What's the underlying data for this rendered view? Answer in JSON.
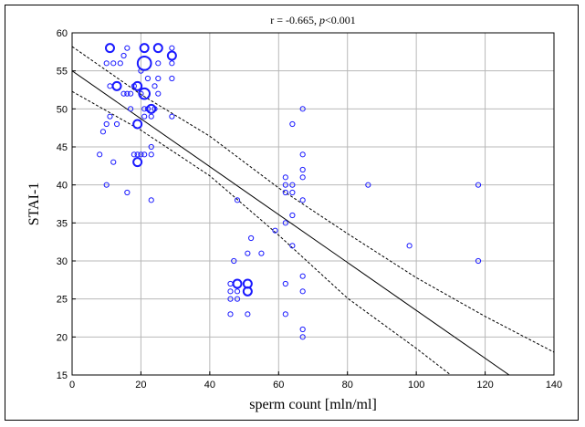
{
  "chart_data": {
    "type": "scatter",
    "title_parts": {
      "prefix": "r = -0.665, ",
      "italic": "p",
      "suffix": "<0.001"
    },
    "xlabel": "sperm count [mln/ml]",
    "ylabel": "STAI-1",
    "xlim": [
      0,
      140
    ],
    "ylim": [
      15,
      60
    ],
    "xticks": [
      0,
      20,
      40,
      60,
      80,
      100,
      120,
      140
    ],
    "yticks": [
      15,
      20,
      25,
      30,
      35,
      40,
      45,
      50,
      55,
      60
    ],
    "grid": true,
    "marker_color": "#1a1aff",
    "line_color": "#000000",
    "regression": {
      "intercept": 55.0,
      "slope": -0.315,
      "ci_upper": [
        [
          0,
          58.2
        ],
        [
          20,
          51.9
        ],
        [
          40,
          46.4
        ],
        [
          60,
          39.6
        ],
        [
          80,
          33.6
        ],
        [
          100,
          27.8
        ],
        [
          120,
          22.7
        ],
        [
          140,
          18.0
        ]
      ],
      "ci_lower": [
        [
          0,
          52.3
        ],
        [
          20,
          47.2
        ],
        [
          40,
          41.2
        ],
        [
          60,
          33.4
        ],
        [
          80,
          25.1
        ],
        [
          100,
          18.5
        ],
        [
          110,
          15.0
        ]
      ]
    },
    "points": [
      {
        "x": 8,
        "y": 44,
        "n": 1
      },
      {
        "x": 9,
        "y": 47,
        "n": 1
      },
      {
        "x": 10,
        "y": 40,
        "n": 1
      },
      {
        "x": 10,
        "y": 48,
        "n": 1
      },
      {
        "x": 10,
        "y": 56,
        "n": 1
      },
      {
        "x": 11,
        "y": 49,
        "n": 1
      },
      {
        "x": 11,
        "y": 53,
        "n": 1
      },
      {
        "x": 11,
        "y": 58,
        "n": 3
      },
      {
        "x": 12,
        "y": 43,
        "n": 1
      },
      {
        "x": 12,
        "y": 56,
        "n": 1
      },
      {
        "x": 13,
        "y": 53,
        "n": 3
      },
      {
        "x": 13,
        "y": 48,
        "n": 1
      },
      {
        "x": 14,
        "y": 56,
        "n": 1
      },
      {
        "x": 15,
        "y": 52,
        "n": 1
      },
      {
        "x": 15,
        "y": 57,
        "n": 1
      },
      {
        "x": 16,
        "y": 52,
        "n": 1
      },
      {
        "x": 16,
        "y": 58,
        "n": 1
      },
      {
        "x": 16,
        "y": 39,
        "n": 1
      },
      {
        "x": 17,
        "y": 52,
        "n": 1
      },
      {
        "x": 17,
        "y": 50,
        "n": 1
      },
      {
        "x": 18,
        "y": 44,
        "n": 1
      },
      {
        "x": 18,
        "y": 53,
        "n": 1
      },
      {
        "x": 19,
        "y": 53,
        "n": 3
      },
      {
        "x": 19,
        "y": 48,
        "n": 3
      },
      {
        "x": 19,
        "y": 43,
        "n": 3
      },
      {
        "x": 19,
        "y": 44,
        "n": 1
      },
      {
        "x": 20,
        "y": 44,
        "n": 1
      },
      {
        "x": 20,
        "y": 52,
        "n": 1
      },
      {
        "x": 20,
        "y": 55,
        "n": 1
      },
      {
        "x": 21,
        "y": 58,
        "n": 3
      },
      {
        "x": 21,
        "y": 56,
        "n": 8
      },
      {
        "x": 21,
        "y": 52,
        "n": 5
      },
      {
        "x": 21,
        "y": 50,
        "n": 1
      },
      {
        "x": 21,
        "y": 49,
        "n": 1
      },
      {
        "x": 21,
        "y": 44,
        "n": 1
      },
      {
        "x": 22,
        "y": 54,
        "n": 1
      },
      {
        "x": 22,
        "y": 50,
        "n": 1
      },
      {
        "x": 23,
        "y": 50,
        "n": 3
      },
      {
        "x": 23,
        "y": 49,
        "n": 1
      },
      {
        "x": 23,
        "y": 45,
        "n": 1
      },
      {
        "x": 23,
        "y": 44,
        "n": 1
      },
      {
        "x": 23,
        "y": 38,
        "n": 1
      },
      {
        "x": 24,
        "y": 53,
        "n": 1
      },
      {
        "x": 24,
        "y": 50,
        "n": 1
      },
      {
        "x": 25,
        "y": 58,
        "n": 3
      },
      {
        "x": 25,
        "y": 56,
        "n": 1
      },
      {
        "x": 25,
        "y": 54,
        "n": 1
      },
      {
        "x": 25,
        "y": 52,
        "n": 1
      },
      {
        "x": 29,
        "y": 57,
        "n": 3
      },
      {
        "x": 29,
        "y": 58,
        "n": 1
      },
      {
        "x": 29,
        "y": 56,
        "n": 1
      },
      {
        "x": 29,
        "y": 54,
        "n": 1
      },
      {
        "x": 29,
        "y": 49,
        "n": 1
      },
      {
        "x": 46,
        "y": 23,
        "n": 1
      },
      {
        "x": 46,
        "y": 25,
        "n": 1
      },
      {
        "x": 46,
        "y": 26,
        "n": 1
      },
      {
        "x": 46,
        "y": 27,
        "n": 1
      },
      {
        "x": 47,
        "y": 30,
        "n": 1
      },
      {
        "x": 48,
        "y": 38,
        "n": 1
      },
      {
        "x": 48,
        "y": 25,
        "n": 1
      },
      {
        "x": 48,
        "y": 26,
        "n": 1
      },
      {
        "x": 48,
        "y": 27,
        "n": 3
      },
      {
        "x": 51,
        "y": 23,
        "n": 1
      },
      {
        "x": 51,
        "y": 26,
        "n": 3
      },
      {
        "x": 51,
        "y": 27,
        "n": 3
      },
      {
        "x": 51,
        "y": 31,
        "n": 1
      },
      {
        "x": 52,
        "y": 33,
        "n": 1
      },
      {
        "x": 55,
        "y": 31,
        "n": 1
      },
      {
        "x": 59,
        "y": 34,
        "n": 1
      },
      {
        "x": 62,
        "y": 23,
        "n": 1
      },
      {
        "x": 62,
        "y": 27,
        "n": 1
      },
      {
        "x": 62,
        "y": 35,
        "n": 1
      },
      {
        "x": 62,
        "y": 39,
        "n": 1
      },
      {
        "x": 62,
        "y": 40,
        "n": 1
      },
      {
        "x": 62,
        "y": 41,
        "n": 1
      },
      {
        "x": 64,
        "y": 32,
        "n": 1
      },
      {
        "x": 64,
        "y": 36,
        "n": 1
      },
      {
        "x": 64,
        "y": 39,
        "n": 1
      },
      {
        "x": 64,
        "y": 40,
        "n": 1
      },
      {
        "x": 64,
        "y": 48,
        "n": 1
      },
      {
        "x": 67,
        "y": 20,
        "n": 1
      },
      {
        "x": 67,
        "y": 21,
        "n": 1
      },
      {
        "x": 67,
        "y": 26,
        "n": 1
      },
      {
        "x": 67,
        "y": 28,
        "n": 1
      },
      {
        "x": 67,
        "y": 38,
        "n": 1
      },
      {
        "x": 67,
        "y": 41,
        "n": 1
      },
      {
        "x": 67,
        "y": 42,
        "n": 1
      },
      {
        "x": 67,
        "y": 44,
        "n": 1
      },
      {
        "x": 67,
        "y": 50,
        "n": 1
      },
      {
        "x": 86,
        "y": 40,
        "n": 1
      },
      {
        "x": 98,
        "y": 32,
        "n": 1
      },
      {
        "x": 118,
        "y": 30,
        "n": 1
      },
      {
        "x": 118,
        "y": 40,
        "n": 1
      }
    ]
  }
}
